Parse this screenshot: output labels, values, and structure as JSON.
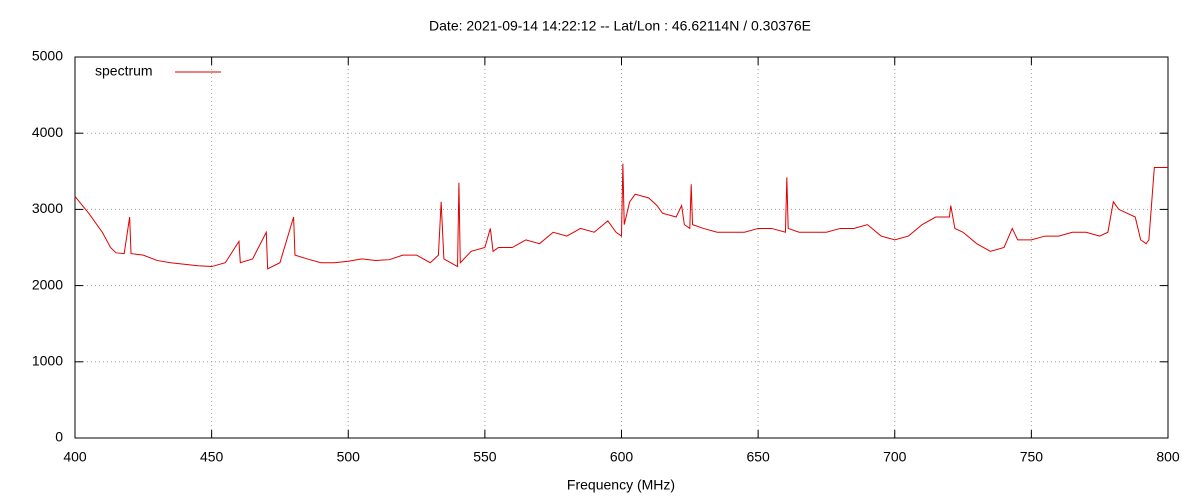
{
  "chart_data": {
    "type": "line",
    "title": "Date: 2021-09-14 14:22:12  --  Lat/Lon : 46.62114N / 0.30376E",
    "xlabel": "Frequency (MHz)",
    "xlim": [
      400,
      800
    ],
    "xticks": [
      400,
      450,
      500,
      550,
      600,
      650,
      700,
      750,
      800
    ],
    "ylim": [
      0,
      5000
    ],
    "yticks": [
      0,
      1000,
      2000,
      3000,
      4000,
      5000
    ],
    "grid": true,
    "legend": "top-left",
    "series": [
      {
        "name": "spectrum",
        "color": "#e00000",
        "x": [
          400,
          405,
          410,
          413,
          415,
          418,
          420,
          420.5,
          425,
          430,
          435,
          440,
          445,
          450,
          455,
          460,
          460.5,
          465,
          470,
          470.5,
          475,
          480,
          480.5,
          485,
          490,
          495,
          500,
          505,
          510,
          515,
          520,
          525,
          530,
          533,
          534,
          535,
          540,
          540.5,
          541,
          545,
          550,
          552,
          553,
          555,
          560,
          565,
          570,
          575,
          580,
          585,
          590,
          595,
          598,
          600,
          600.5,
          601,
          603,
          605,
          610,
          613,
          615,
          620,
          622,
          623,
          625,
          625.5,
          626,
          630,
          635,
          640,
          645,
          650,
          655,
          660,
          660.5,
          661,
          665,
          670,
          675,
          680,
          685,
          690,
          695,
          700,
          705,
          710,
          715,
          720,
          720.5,
          722,
          725,
          730,
          735,
          740,
          743,
          745,
          750,
          755,
          760,
          765,
          770,
          775,
          778,
          780,
          782,
          785,
          788,
          790,
          792,
          793,
          795,
          800
        ],
        "values": [
          3170,
          2950,
          2700,
          2500,
          2430,
          2420,
          2900,
          2420,
          2400,
          2330,
          2300,
          2280,
          2260,
          2250,
          2300,
          2580,
          2300,
          2350,
          2700,
          2220,
          2300,
          2900,
          2400,
          2350,
          2300,
          2300,
          2320,
          2350,
          2330,
          2340,
          2400,
          2400,
          2300,
          2400,
          3100,
          2350,
          2250,
          3350,
          2300,
          2450,
          2500,
          2750,
          2450,
          2500,
          2500,
          2600,
          2550,
          2700,
          2650,
          2750,
          2700,
          2850,
          2700,
          2650,
          3600,
          2800,
          3100,
          3200,
          3150,
          3050,
          2950,
          2900,
          3050,
          2800,
          2750,
          3330,
          2800,
          2750,
          2700,
          2700,
          2700,
          2750,
          2750,
          2700,
          3420,
          2750,
          2700,
          2700,
          2700,
          2750,
          2750,
          2800,
          2650,
          2600,
          2650,
          2800,
          2900,
          2900,
          3050,
          2750,
          2700,
          2550,
          2450,
          2500,
          2750,
          2600,
          2600,
          2650,
          2650,
          2700,
          2700,
          2650,
          2700,
          3100,
          3000,
          2950,
          2900,
          2600,
          2550,
          2600,
          3550,
          3550
        ]
      }
    ]
  }
}
